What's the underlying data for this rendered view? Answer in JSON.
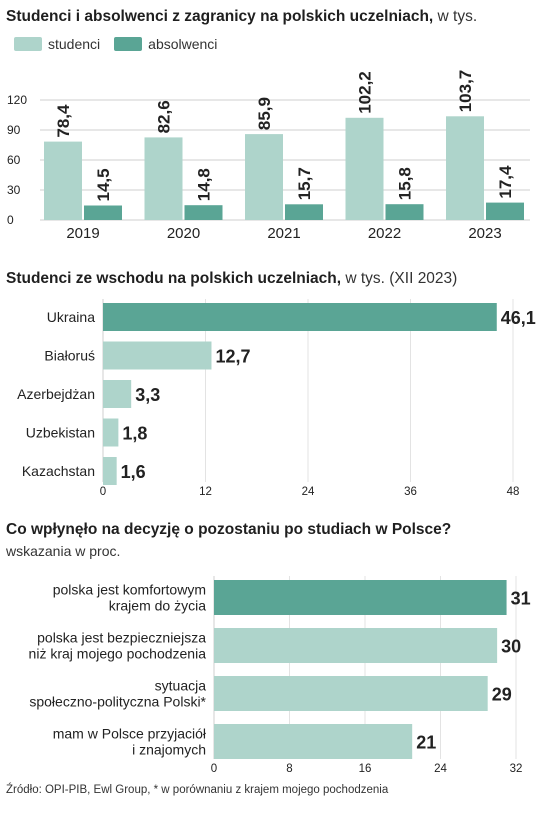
{
  "colors": {
    "light": "#aed4cb",
    "dark": "#5aa595",
    "grid": "#cfcfcf",
    "text": "#222222"
  },
  "chart1": {
    "title_bold": "Studenci i absolwenci z zagranicy na polskich uczelniach,",
    "title_rest": " w tys.",
    "legend": [
      "studenci",
      "absolwenci"
    ]
  },
  "chart2": {
    "title_bold": "Studenci ze wschodu na polskich uczelniach,",
    "title_rest": " w tys. (XII 2023)"
  },
  "chart3": {
    "title_bold": "Co wpłynęło na decyzję o pozostaniu po studiach w Polsce?",
    "subtitle": "wskazania w proc."
  },
  "source": "Źródło: OPI-PIB, Ewl Group, * w porównaniu z krajem mojego pochodzenia",
  "chart_data": [
    {
      "type": "bar",
      "title": "Studenci i absolwenci z zagranicy na polskich uczelniach, w tys.",
      "categories": [
        "2019",
        "2020",
        "2021",
        "2022",
        "2023"
      ],
      "series": [
        {
          "name": "studenci",
          "values": [
            78.4,
            82.6,
            85.9,
            102.2,
            103.7
          ],
          "labels": [
            "78,4",
            "82,6",
            "85,9",
            "102,2",
            "103,7"
          ]
        },
        {
          "name": "absolwenci",
          "values": [
            14.5,
            14.8,
            15.7,
            15.8,
            17.4
          ],
          "labels": [
            "14,5",
            "14,8",
            "15,7",
            "15,8",
            "17,4"
          ]
        }
      ],
      "yticks": [
        0,
        30,
        60,
        90,
        120
      ],
      "ylim": [
        0,
        120
      ]
    },
    {
      "type": "bar",
      "orientation": "horizontal",
      "title": "Studenci ze wschodu na polskich uczelniach, w tys. (XII 2023)",
      "categories": [
        "Ukraina",
        "Białoruś",
        "Azerbejdżan",
        "Uzbekistan",
        "Kazachstan"
      ],
      "values": [
        46.1,
        12.7,
        3.3,
        1.8,
        1.6
      ],
      "labels": [
        "46,1",
        "12,7",
        "3,3",
        "1,8",
        "1,6"
      ],
      "highlight": [
        true,
        false,
        false,
        false,
        false
      ],
      "xticks": [
        0,
        12,
        24,
        36,
        48
      ],
      "xlim": [
        0,
        48
      ]
    },
    {
      "type": "bar",
      "orientation": "horizontal",
      "title": "Co wpłynęło na decyzję o pozostaniu po studiach w Polsce?",
      "subtitle": "wskazania w proc.",
      "categories": [
        [
          "polska jest komfortowym",
          "krajem do życia"
        ],
        [
          "polska jest bezpieczniejsza",
          "niż  kraj mojego pochodzenia"
        ],
        [
          "sytuacja",
          "społeczno-polityczna Polski*"
        ],
        [
          "mam w Polsce przyjaciół",
          "i znajomych"
        ]
      ],
      "values": [
        31,
        30,
        29,
        21
      ],
      "labels": [
        "31",
        "30",
        "29",
        "21"
      ],
      "highlight": [
        true,
        false,
        false,
        false
      ],
      "xticks": [
        0,
        8,
        16,
        24,
        32
      ],
      "xlim": [
        0,
        32
      ]
    }
  ]
}
